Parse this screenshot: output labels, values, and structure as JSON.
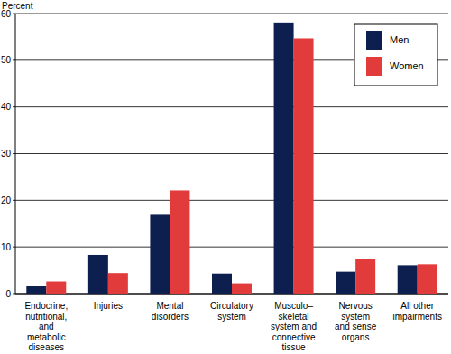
{
  "chart_data": {
    "type": "bar",
    "y_label": "Percent",
    "categories": [
      "Endocrine,\nnutritional,\nand\nmetabolic\ndiseases",
      "Injuries",
      "Mental\ndisorders",
      "Circulatory\nsystem",
      "Musculo–\nskeletal\nsystem and\nconnective\ntissue",
      "Nervous\nsystem\nand sense\norgans",
      "All other\nimpairments"
    ],
    "series": [
      {
        "name": "Men",
        "color": "#0d1f4f",
        "values": [
          1.7,
          8.3,
          16.9,
          4.3,
          58.1,
          4.7,
          6.1
        ]
      },
      {
        "name": "Women",
        "color": "#e23b3b",
        "values": [
          2.6,
          4.4,
          22.1,
          2.2,
          54.7,
          7.5,
          6.3
        ]
      }
    ],
    "ylim": [
      0,
      60
    ],
    "yticks": [
      0,
      10,
      20,
      30,
      40,
      50,
      60
    ],
    "grid": true,
    "legend": "top-right"
  }
}
